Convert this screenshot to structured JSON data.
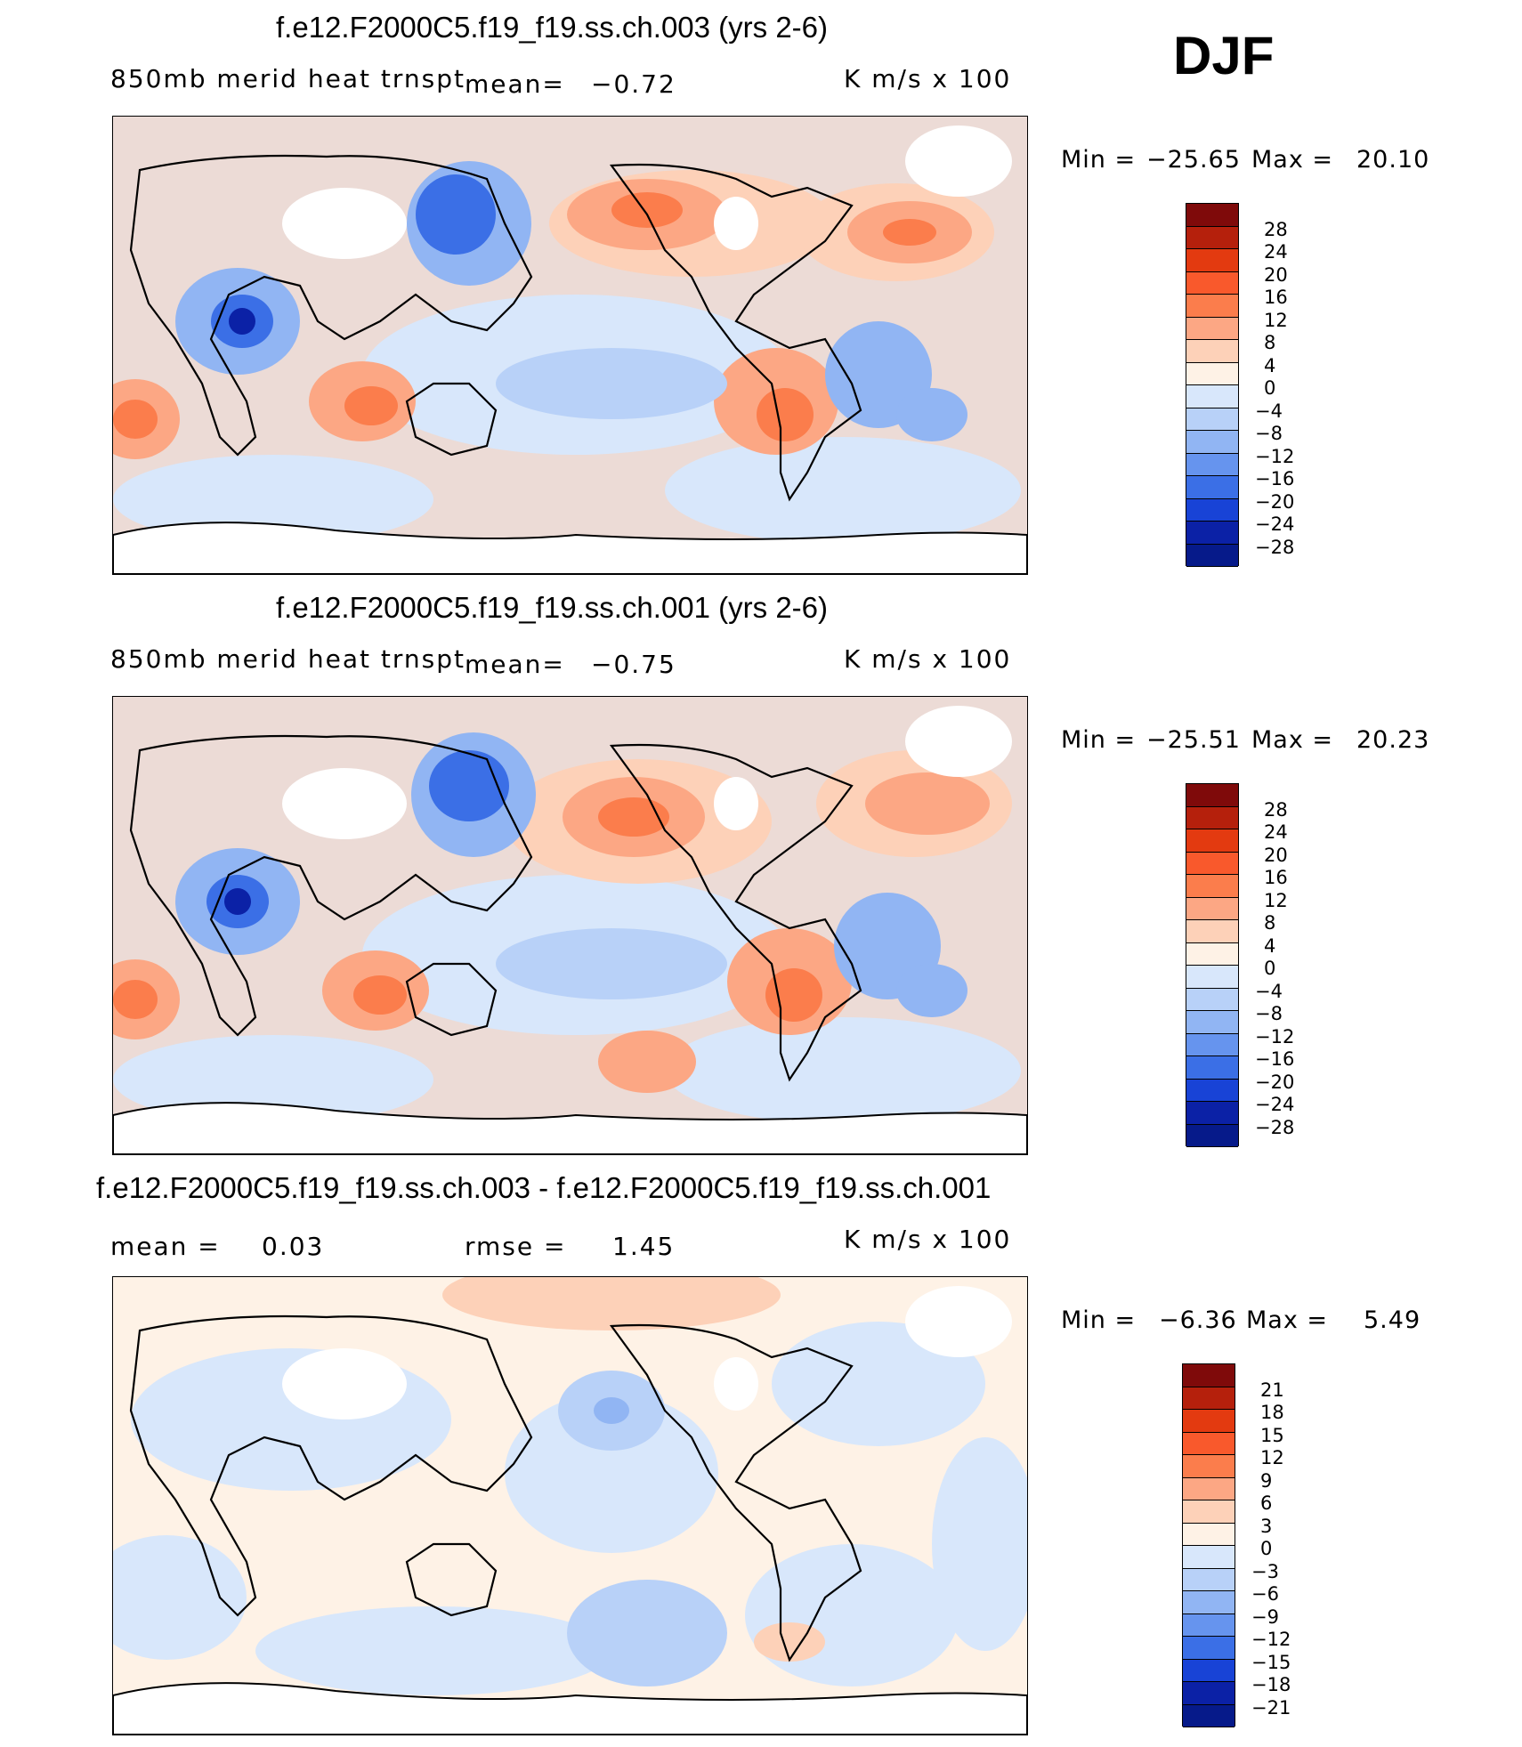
{
  "season": "DJF",
  "panels": [
    {
      "title": "f.e12.F2000C5.f19_f19.ss.ch.003 (yrs 2-6)",
      "left_label": "850mb merid heat trnspt",
      "mean_label": "mean=",
      "mean_value": "−0.72",
      "units": "K m/s x 100",
      "min_label": "Min =",
      "min_value": "−25.65",
      "max_label": "Max =",
      "max_value": "20.10"
    },
    {
      "title": "f.e12.F2000C5.f19_f19.ss.ch.001 (yrs 2-6)",
      "left_label": "850mb merid heat trnspt",
      "mean_label": "mean=",
      "mean_value": "−0.75",
      "units": "K m/s x 100",
      "min_label": "Min =",
      "min_value": "−25.51",
      "max_label": "Max =",
      "max_value": "20.23"
    },
    {
      "title": "f.e12.F2000C5.f19_f19.ss.ch.003 - f.e12.F2000C5.f19_f19.ss.ch.001",
      "mean_label": "mean =",
      "mean_value": "0.03",
      "rmse_label": "rmse =",
      "rmse_value": "1.45",
      "units": "K m/s x 100",
      "min_label": "Min =",
      "min_value": "−6.36",
      "max_label": "Max =",
      "max_value": "5.49"
    }
  ],
  "colorbars": [
    {
      "labels": [
        "28",
        "24",
        "20",
        "16",
        "12",
        "8",
        "4",
        "0",
        "−4",
        "−8",
        "−12",
        "−16",
        "−20",
        "−24",
        "−28"
      ],
      "colors": [
        "#7f0a0a",
        "#b5200c",
        "#e33a10",
        "#f9592c",
        "#fb7d4c",
        "#fca784",
        "#fdd1b8",
        "#fef2e6",
        "#d8e7fb",
        "#b8d1f8",
        "#91b5f3",
        "#6694ee",
        "#3b6fe6",
        "#1843d6",
        "#0b21a6",
        "#061a8a"
      ]
    },
    {
      "labels": [
        "28",
        "24",
        "20",
        "16",
        "12",
        "8",
        "4",
        "0",
        "−4",
        "−8",
        "−12",
        "−16",
        "−20",
        "−24",
        "−28"
      ],
      "colors": [
        "#7f0a0a",
        "#b5200c",
        "#e33a10",
        "#f9592c",
        "#fb7d4c",
        "#fca784",
        "#fdd1b8",
        "#fef2e6",
        "#d8e7fb",
        "#b8d1f8",
        "#91b5f3",
        "#6694ee",
        "#3b6fe6",
        "#1843d6",
        "#0b21a6",
        "#061a8a"
      ]
    },
    {
      "labels": [
        "21",
        "18",
        "15",
        "12",
        "9",
        "6",
        "3",
        "0",
        "−3",
        "−6",
        "−9",
        "−12",
        "−15",
        "−18",
        "−21"
      ],
      "colors": [
        "#7f0a0a",
        "#b5200c",
        "#e33a10",
        "#f9592c",
        "#fb7d4c",
        "#fca784",
        "#fdd1b8",
        "#fef2e6",
        "#d8e7fb",
        "#b8d1f8",
        "#91b5f3",
        "#6694ee",
        "#3b6fe6",
        "#1843d6",
        "#0b21a6",
        "#061a8a"
      ]
    }
  ]
}
